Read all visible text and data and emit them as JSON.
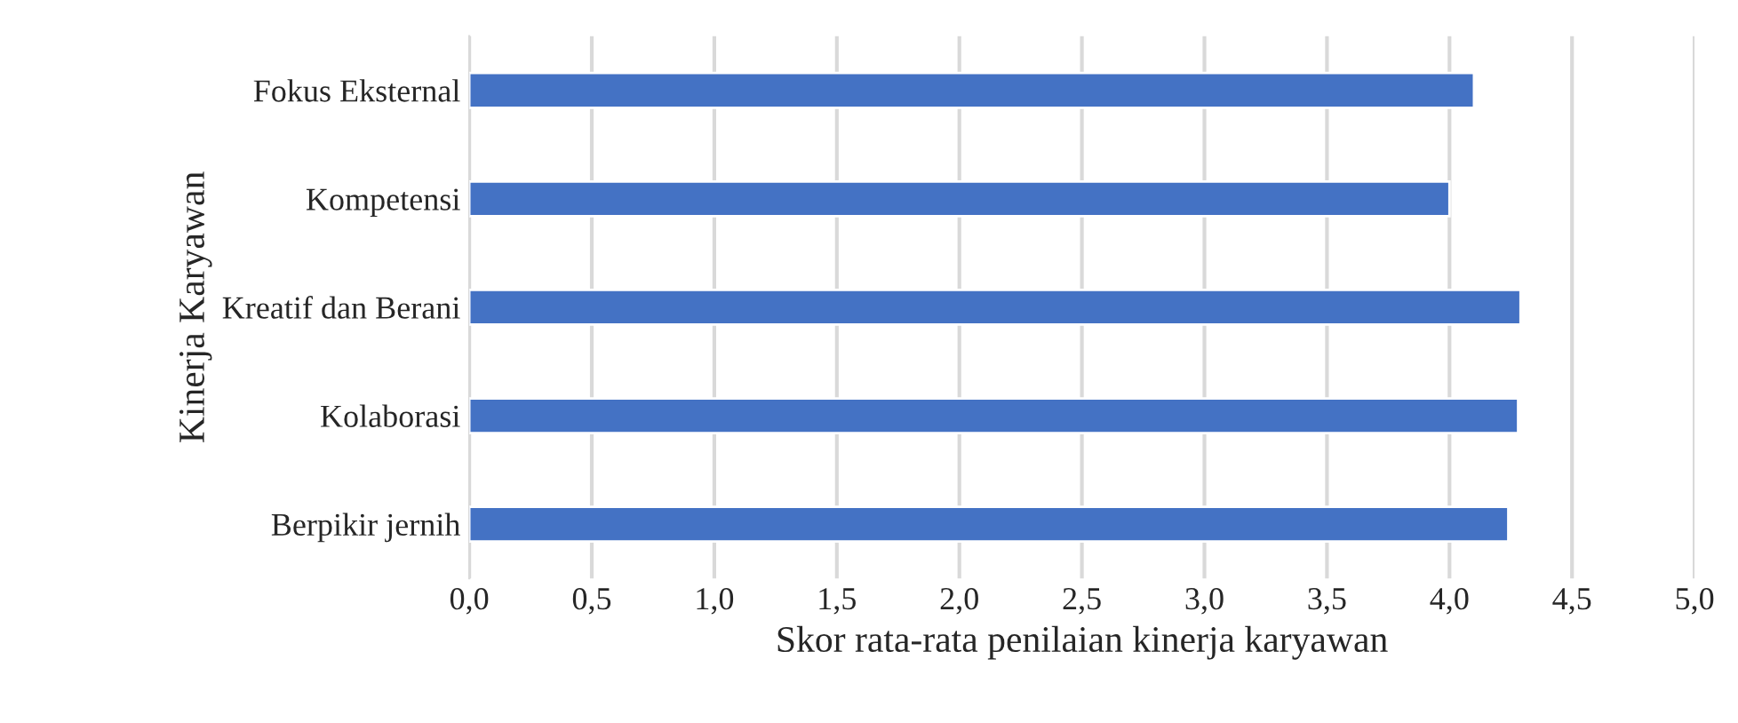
{
  "chart_data": {
    "type": "bar",
    "orientation": "horizontal",
    "xlabel": "Skor rata-rata penilaian kinerja karyawan",
    "ylabel": "Kinerja Karyawan",
    "categories": [
      "Fokus Eksternal",
      "Kompetensi",
      "Kreatif dan Berani",
      "Kolaborasi",
      "Berpikir jernih"
    ],
    "values": [
      4.1,
      4.0,
      4.29,
      4.28,
      4.24
    ],
    "color": "#4472c4",
    "xlim": [
      0,
      5
    ],
    "xticks": [
      {
        "value": 0,
        "label": "0,0"
      },
      {
        "value": 0.5,
        "label": "0,5"
      },
      {
        "value": 1,
        "label": "1,0"
      },
      {
        "value": 1.5,
        "label": "1,5"
      },
      {
        "value": 2,
        "label": "2,0"
      },
      {
        "value": 2.5,
        "label": "2,5"
      },
      {
        "value": 3,
        "label": "3,0"
      },
      {
        "value": 3.5,
        "label": "3,5"
      },
      {
        "value": 4,
        "label": "4,0"
      },
      {
        "value": 4.5,
        "label": "4,5"
      },
      {
        "value": 5,
        "label": "5,0"
      }
    ],
    "grid": "x"
  }
}
